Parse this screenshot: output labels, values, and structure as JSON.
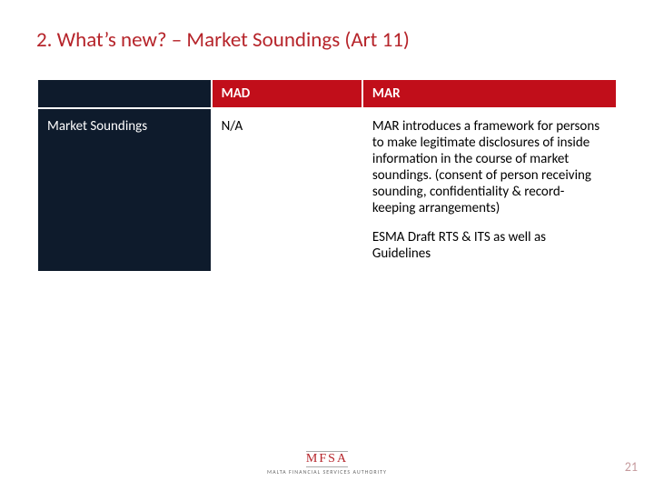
{
  "title": {
    "text": "2. What’s new? – Market Soundings (Art 11)",
    "color": "#b6242a",
    "fontsize": 23
  },
  "table": {
    "header_bg": "#c10e1a",
    "header_text_color": "#ffffff",
    "body_bg": "#0e1b2c",
    "row_label_text_color": "#ffffff",
    "cell_bg": "#ffffff",
    "cell_text_color": "#000000",
    "body_fontsize": 15,
    "header_fontsize": 15,
    "columns": [
      "",
      "MAD",
      "MAR"
    ],
    "rows": [
      {
        "label": "Market Soundings",
        "mad": "N/A",
        "mar_paragraphs": [
          "MAR introduces a framework for persons to make legitimate disclosures of inside information in the course of market soundings. (consent of person receiving sounding, confidentiality & record-keeping arrangements)",
          "ESMA Draft RTS & ITS as well as Guidelines"
        ]
      }
    ]
  },
  "page_number": {
    "text": "21",
    "color": "#c59a9d",
    "fontsize": 14
  },
  "logo": {
    "main": "MFSA",
    "sub": "MALTA FINANCIAL SERVICES AUTHORITY",
    "main_color": "#b6242a",
    "sub_color": "#6b6b6b",
    "main_fontsize": 14,
    "sub_fontsize": 6
  }
}
